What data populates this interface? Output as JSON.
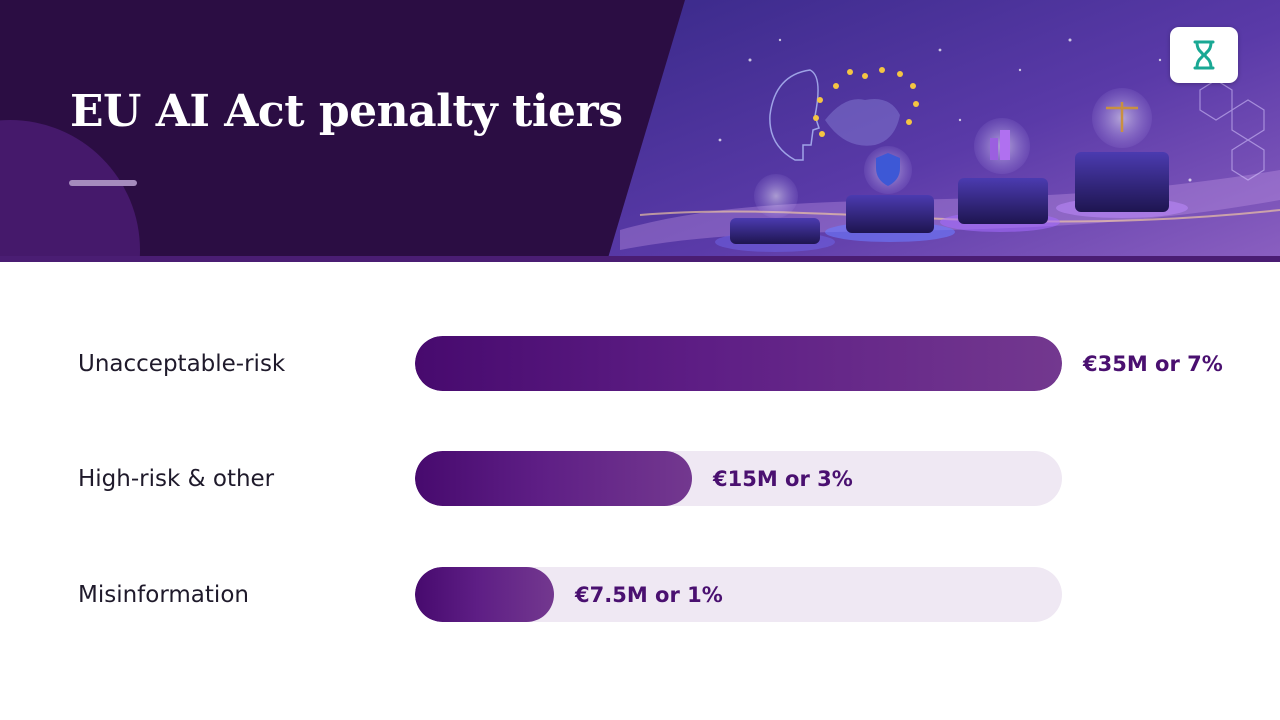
{
  "header": {
    "title": "EU AI Act penalty tiers"
  },
  "colors": {
    "header_bg": "#2b0d43",
    "bar_fill": "#5e1e85",
    "track_bg": "#efe8f3",
    "value_text": "#4a1070",
    "label_text": "#1f1a2b"
  },
  "chart_data": {
    "type": "bar",
    "orientation": "horizontal",
    "categories": [
      "Unacceptable-risk",
      "High-risk & other",
      "Misinformation"
    ],
    "values": [
      35,
      15,
      7.5
    ],
    "value_labels": [
      "€35M or 7%",
      "€15M or 3%",
      "€7.5M or 1%"
    ],
    "xlim": [
      0,
      35
    ],
    "grid": false,
    "legend": "none"
  }
}
